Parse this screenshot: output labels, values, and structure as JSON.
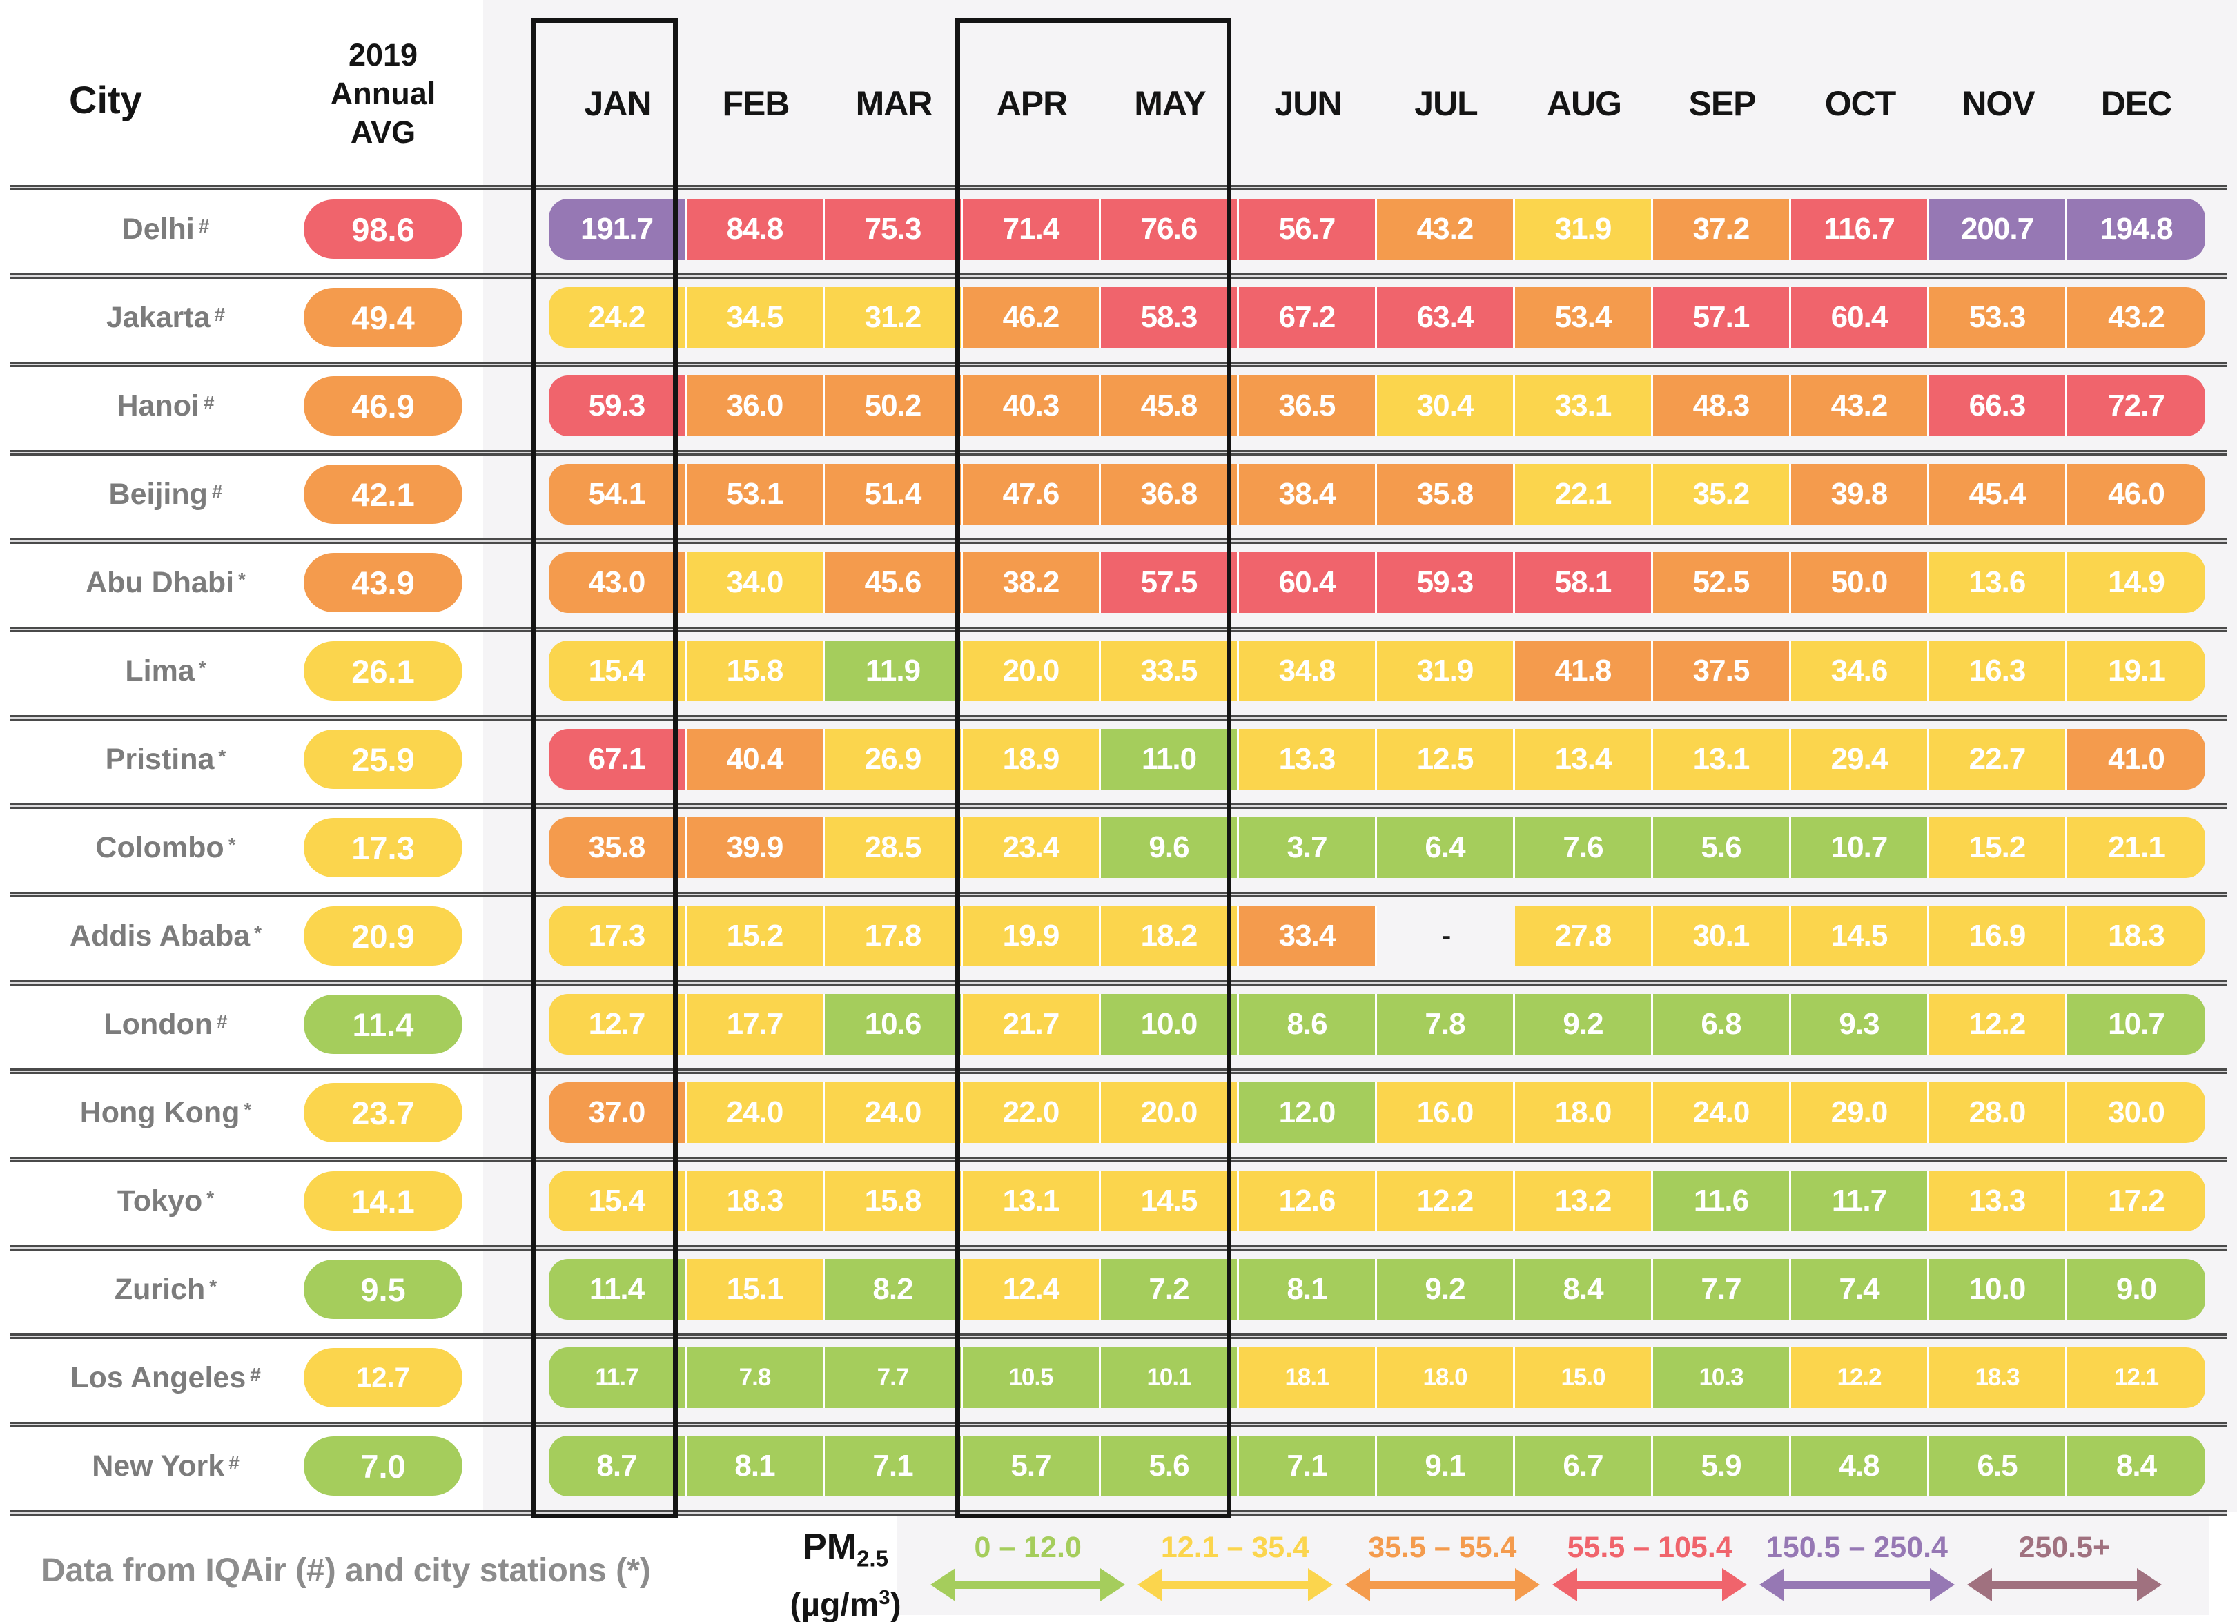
{
  "header": {
    "city_label": "City",
    "avg_label": "2019\nAnnual\nAVG"
  },
  "chart_data": {
    "type": "heatmap",
    "unit_label": {
      "pm": "PM",
      "pm_sub": "2.5",
      "unit_prefix": "(µg/m",
      "unit_sup": "3",
      "unit_suffix": ")"
    },
    "value_colors": {
      "g": "#a5cd5c",
      "y": "#fbd54d",
      "o": "#f49b4d",
      "r": "#f0646c",
      "p": "#9678b4",
      "m": "#a0717f"
    },
    "columns": [
      "JAN",
      "FEB",
      "MAR",
      "APR",
      "MAY",
      "JUN",
      "JUL",
      "AUG",
      "SEP",
      "OCT",
      "NOV",
      "DEC"
    ],
    "rows": [
      {
        "city": "Delhi",
        "marker": "#",
        "small": false,
        "avg": {
          "v": "98.6",
          "c": "r"
        },
        "cells": [
          [
            "191.7",
            "p"
          ],
          [
            "84.8",
            "r"
          ],
          [
            "75.3",
            "r"
          ],
          [
            "71.4",
            "r"
          ],
          [
            "76.6",
            "r"
          ],
          [
            "56.7",
            "r"
          ],
          [
            "43.2",
            "o"
          ],
          [
            "31.9",
            "y"
          ],
          [
            "37.2",
            "o"
          ],
          [
            "116.7",
            "r"
          ],
          [
            "200.7",
            "p"
          ],
          [
            "194.8",
            "p"
          ]
        ]
      },
      {
        "city": "Jakarta",
        "marker": "#",
        "small": false,
        "avg": {
          "v": "49.4",
          "c": "o"
        },
        "cells": [
          [
            "24.2",
            "y"
          ],
          [
            "34.5",
            "y"
          ],
          [
            "31.2",
            "y"
          ],
          [
            "46.2",
            "o"
          ],
          [
            "58.3",
            "r"
          ],
          [
            "67.2",
            "r"
          ],
          [
            "63.4",
            "r"
          ],
          [
            "53.4",
            "o"
          ],
          [
            "57.1",
            "r"
          ],
          [
            "60.4",
            "r"
          ],
          [
            "53.3",
            "o"
          ],
          [
            "43.2",
            "o"
          ]
        ]
      },
      {
        "city": "Hanoi",
        "marker": "#",
        "small": false,
        "avg": {
          "v": "46.9",
          "c": "o"
        },
        "cells": [
          [
            "59.3",
            "r"
          ],
          [
            "36.0",
            "o"
          ],
          [
            "50.2",
            "o"
          ],
          [
            "40.3",
            "o"
          ],
          [
            "45.8",
            "o"
          ],
          [
            "36.5",
            "o"
          ],
          [
            "30.4",
            "y"
          ],
          [
            "33.1",
            "y"
          ],
          [
            "48.3",
            "o"
          ],
          [
            "43.2",
            "o"
          ],
          [
            "66.3",
            "r"
          ],
          [
            "72.7",
            "r"
          ]
        ]
      },
      {
        "city": "Beijing",
        "marker": "#",
        "small": false,
        "avg": {
          "v": "42.1",
          "c": "o"
        },
        "cells": [
          [
            "54.1",
            "o"
          ],
          [
            "53.1",
            "o"
          ],
          [
            "51.4",
            "o"
          ],
          [
            "47.6",
            "o"
          ],
          [
            "36.8",
            "o"
          ],
          [
            "38.4",
            "o"
          ],
          [
            "35.8",
            "o"
          ],
          [
            "22.1",
            "y"
          ],
          [
            "35.2",
            "y"
          ],
          [
            "39.8",
            "o"
          ],
          [
            "45.4",
            "o"
          ],
          [
            "46.0",
            "o"
          ]
        ]
      },
      {
        "city": "Abu Dhabi",
        "marker": "*",
        "small": false,
        "avg": {
          "v": "43.9",
          "c": "o"
        },
        "cells": [
          [
            "43.0",
            "o"
          ],
          [
            "34.0",
            "y"
          ],
          [
            "45.6",
            "o"
          ],
          [
            "38.2",
            "o"
          ],
          [
            "57.5",
            "r"
          ],
          [
            "60.4",
            "r"
          ],
          [
            "59.3",
            "r"
          ],
          [
            "58.1",
            "r"
          ],
          [
            "52.5",
            "o"
          ],
          [
            "50.0",
            "o"
          ],
          [
            "13.6",
            "y"
          ],
          [
            "14.9",
            "y"
          ]
        ]
      },
      {
        "city": "Lima",
        "marker": "*",
        "small": false,
        "avg": {
          "v": "26.1",
          "c": "y"
        },
        "cells": [
          [
            "15.4",
            "y"
          ],
          [
            "15.8",
            "y"
          ],
          [
            "11.9",
            "g"
          ],
          [
            "20.0",
            "y"
          ],
          [
            "33.5",
            "y"
          ],
          [
            "34.8",
            "y"
          ],
          [
            "31.9",
            "y"
          ],
          [
            "41.8",
            "o"
          ],
          [
            "37.5",
            "o"
          ],
          [
            "34.6",
            "y"
          ],
          [
            "16.3",
            "y"
          ],
          [
            "19.1",
            "y"
          ]
        ]
      },
      {
        "city": "Pristina",
        "marker": "*",
        "small": false,
        "avg": {
          "v": "25.9",
          "c": "y"
        },
        "cells": [
          [
            "67.1",
            "r"
          ],
          [
            "40.4",
            "o"
          ],
          [
            "26.9",
            "y"
          ],
          [
            "18.9",
            "y"
          ],
          [
            "11.0",
            "g"
          ],
          [
            "13.3",
            "y"
          ],
          [
            "12.5",
            "y"
          ],
          [
            "13.4",
            "y"
          ],
          [
            "13.1",
            "y"
          ],
          [
            "29.4",
            "y"
          ],
          [
            "22.7",
            "y"
          ],
          [
            "41.0",
            "o"
          ]
        ]
      },
      {
        "city": "Colombo",
        "marker": "*",
        "small": false,
        "avg": {
          "v": "17.3",
          "c": "y"
        },
        "cells": [
          [
            "35.8",
            "o"
          ],
          [
            "39.9",
            "o"
          ],
          [
            "28.5",
            "y"
          ],
          [
            "23.4",
            "y"
          ],
          [
            "9.6",
            "g"
          ],
          [
            "3.7",
            "g"
          ],
          [
            "6.4",
            "g"
          ],
          [
            "7.6",
            "g"
          ],
          [
            "5.6",
            "g"
          ],
          [
            "10.7",
            "g"
          ],
          [
            "15.2",
            "y"
          ],
          [
            "21.1",
            "y"
          ]
        ]
      },
      {
        "city": "Addis Ababa",
        "marker": "*",
        "small": false,
        "avg": {
          "v": "20.9",
          "c": "y"
        },
        "cells": [
          [
            "17.3",
            "y"
          ],
          [
            "15.2",
            "y"
          ],
          [
            "17.8",
            "y"
          ],
          [
            "19.9",
            "y"
          ],
          [
            "18.2",
            "y"
          ],
          [
            "33.4",
            "o"
          ],
          [
            "-",
            null
          ],
          [
            "27.8",
            "y"
          ],
          [
            "30.1",
            "y"
          ],
          [
            "14.5",
            "y"
          ],
          [
            "16.9",
            "y"
          ],
          [
            "18.3",
            "y"
          ]
        ]
      },
      {
        "city": "London",
        "marker": "#",
        "small": false,
        "avg": {
          "v": "11.4",
          "c": "g"
        },
        "cells": [
          [
            "12.7",
            "y"
          ],
          [
            "17.7",
            "y"
          ],
          [
            "10.6",
            "g"
          ],
          [
            "21.7",
            "y"
          ],
          [
            "10.0",
            "g"
          ],
          [
            "8.6",
            "g"
          ],
          [
            "7.8",
            "g"
          ],
          [
            "9.2",
            "g"
          ],
          [
            "6.8",
            "g"
          ],
          [
            "9.3",
            "g"
          ],
          [
            "12.2",
            "y"
          ],
          [
            "10.7",
            "g"
          ]
        ]
      },
      {
        "city": "Hong Kong",
        "marker": "*",
        "small": false,
        "avg": {
          "v": "23.7",
          "c": "y"
        },
        "cells": [
          [
            "37.0",
            "o"
          ],
          [
            "24.0",
            "y"
          ],
          [
            "24.0",
            "y"
          ],
          [
            "22.0",
            "y"
          ],
          [
            "20.0",
            "y"
          ],
          [
            "12.0",
            "g"
          ],
          [
            "16.0",
            "y"
          ],
          [
            "18.0",
            "y"
          ],
          [
            "24.0",
            "y"
          ],
          [
            "29.0",
            "y"
          ],
          [
            "28.0",
            "y"
          ],
          [
            "30.0",
            "y"
          ]
        ]
      },
      {
        "city": "Tokyo",
        "marker": "*",
        "small": false,
        "avg": {
          "v": "14.1",
          "c": "y"
        },
        "cells": [
          [
            "15.4",
            "y"
          ],
          [
            "18.3",
            "y"
          ],
          [
            "15.8",
            "y"
          ],
          [
            "13.1",
            "y"
          ],
          [
            "14.5",
            "y"
          ],
          [
            "12.6",
            "y"
          ],
          [
            "12.2",
            "y"
          ],
          [
            "13.2",
            "y"
          ],
          [
            "11.6",
            "g"
          ],
          [
            "11.7",
            "g"
          ],
          [
            "13.3",
            "y"
          ],
          [
            "17.2",
            "y"
          ]
        ]
      },
      {
        "city": "Zurich",
        "marker": "*",
        "small": false,
        "avg": {
          "v": "9.5",
          "c": "g"
        },
        "cells": [
          [
            "11.4",
            "g"
          ],
          [
            "15.1",
            "y"
          ],
          [
            "8.2",
            "g"
          ],
          [
            "12.4",
            "y"
          ],
          [
            "7.2",
            "g"
          ],
          [
            "8.1",
            "g"
          ],
          [
            "9.2",
            "g"
          ],
          [
            "8.4",
            "g"
          ],
          [
            "7.7",
            "g"
          ],
          [
            "7.4",
            "g"
          ],
          [
            "10.0",
            "g"
          ],
          [
            "9.0",
            "g"
          ]
        ]
      },
      {
        "city": "Los Angeles",
        "marker": "#",
        "small": true,
        "avg": {
          "v": "12.7",
          "c": "y"
        },
        "cells": [
          [
            "11.7",
            "g"
          ],
          [
            "7.8",
            "g"
          ],
          [
            "7.7",
            "g"
          ],
          [
            "10.5",
            "g"
          ],
          [
            "10.1",
            "g"
          ],
          [
            "18.1",
            "y"
          ],
          [
            "18.0",
            "y"
          ],
          [
            "15.0",
            "y"
          ],
          [
            "10.3",
            "g"
          ],
          [
            "12.2",
            "y"
          ],
          [
            "18.3",
            "y"
          ],
          [
            "12.1",
            "y"
          ]
        ]
      },
      {
        "city": "New York",
        "marker": "#",
        "small": false,
        "avg": {
          "v": "7.0",
          "c": "g"
        },
        "cells": [
          [
            "8.7",
            "g"
          ],
          [
            "8.1",
            "g"
          ],
          [
            "7.1",
            "g"
          ],
          [
            "5.7",
            "g"
          ],
          [
            "5.6",
            "g"
          ],
          [
            "7.1",
            "g"
          ],
          [
            "9.1",
            "g"
          ],
          [
            "6.7",
            "g"
          ],
          [
            "5.9",
            "g"
          ],
          [
            "4.8",
            "g"
          ],
          [
            "6.5",
            "g"
          ],
          [
            "8.4",
            "g"
          ]
        ]
      }
    ]
  },
  "legend": {
    "source_note": "Data from IQAir (#) and city stations (*)",
    "ranges": [
      {
        "label": "0 – 12.0",
        "c": "g"
      },
      {
        "label": "12.1 – 35.4",
        "c": "y"
      },
      {
        "label": "35.5 – 55.4",
        "c": "o"
      },
      {
        "label": "55.5 – 105.4",
        "c": "r"
      },
      {
        "label": "150.5 – 250.4",
        "c": "p"
      },
      {
        "label": "250.5+",
        "c": "m"
      }
    ]
  }
}
